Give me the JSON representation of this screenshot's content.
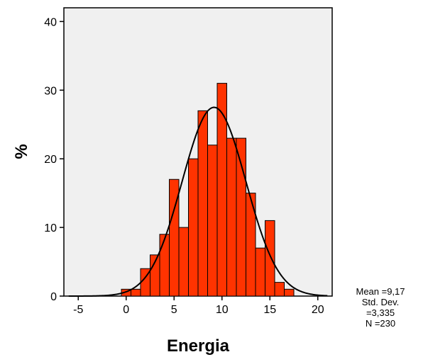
{
  "chart_data": {
    "type": "bar",
    "subtype": "histogram",
    "xlabel": "Energia",
    "ylabel": "%",
    "xlim": [
      -6.5,
      21.5
    ],
    "ylim": [
      0,
      42
    ],
    "x_ticks": [
      "-5",
      "0",
      "5",
      "10",
      "15",
      "20"
    ],
    "y_ticks": [
      "0",
      "10",
      "20",
      "30",
      "40"
    ],
    "bin_width": 1,
    "bins": [
      {
        "x0": -0.5,
        "value": 1
      },
      {
        "x0": 0.5,
        "value": 1
      },
      {
        "x0": 1.5,
        "value": 4
      },
      {
        "x0": 2.5,
        "value": 6
      },
      {
        "x0": 3.5,
        "value": 9
      },
      {
        "x0": 4.5,
        "value": 17
      },
      {
        "x0": 5.5,
        "value": 10
      },
      {
        "x0": 6.5,
        "value": 20
      },
      {
        "x0": 7.5,
        "value": 27
      },
      {
        "x0": 8.5,
        "value": 22
      },
      {
        "x0": 9.5,
        "value": 31
      },
      {
        "x0": 10.5,
        "value": 23
      },
      {
        "x0": 11.5,
        "value": 23
      },
      {
        "x0": 12.5,
        "value": 15
      },
      {
        "x0": 13.5,
        "value": 7
      },
      {
        "x0": 14.5,
        "value": 11
      },
      {
        "x0": 15.5,
        "value": 2
      },
      {
        "x0": 16.5,
        "value": 1
      }
    ],
    "normal_curve": {
      "mean": 9.17,
      "std": 3.335,
      "peak": 27.5
    },
    "stats": {
      "mean": "Mean =9,17",
      "std_label": "Std. Dev.",
      "std_value": "=3,335",
      "n": "N =230"
    },
    "colors": {
      "bar_fill": "#ff3300",
      "bar_stroke": "#000000",
      "plot_bg": "#f0f0f0",
      "curve": "#000000"
    },
    "grid": false
  }
}
